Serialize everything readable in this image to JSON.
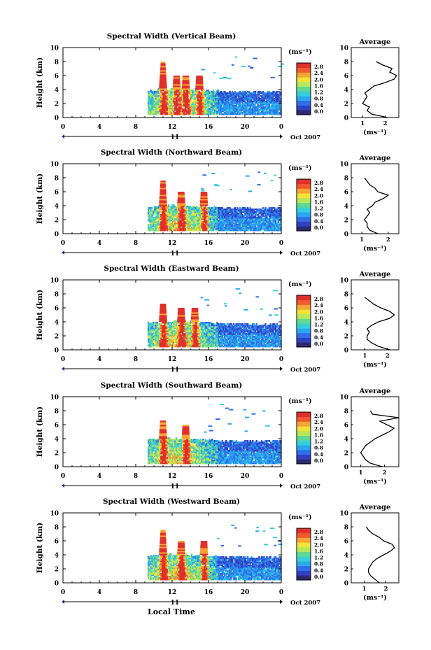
{
  "figure": {
    "time_axis_label": "Local Time",
    "average_title": "Average",
    "average_xlabel": "(ms⁻¹)",
    "ylabel": "Height (km)",
    "colorbar_unit": "(ms⁻¹)",
    "date_label": "Oct 2007",
    "day_label": "11"
  },
  "colorbar": {
    "tick_labels": [
      "0.0",
      "0.4",
      "0.8",
      "1.2",
      "1.6",
      "2.0",
      "2.4",
      "2.8"
    ],
    "colors": [
      "#2a2a6e",
      "#3040c0",
      "#2f6fe8",
      "#2aa7f0",
      "#38d0d8",
      "#5fd890",
      "#b4e85a",
      "#f2e23a",
      "#f5a634",
      "#ef5a2e",
      "#e0302a"
    ]
  },
  "chart_data": [
    {
      "type": "heatmap",
      "title": "Spectral Width (Vertical Beam)",
      "xlabel": "",
      "ylabel": "Height (km)",
      "xlim": [
        0,
        24
      ],
      "ylim": [
        0,
        10
      ],
      "xticks": [
        "0",
        "4",
        "8",
        "12",
        "16",
        "20",
        "0"
      ],
      "yticks": [
        "0",
        "2",
        "4",
        "6",
        "8",
        "10"
      ],
      "colorbar": {
        "label": "(ms⁻¹)",
        "range": [
          0,
          2.8
        ]
      },
      "average_profile": {
        "xlim": [
          0.5,
          2.6
        ],
        "xticks": [
          "1",
          "2"
        ],
        "ylim": [
          0,
          10
        ],
        "height_km": [
          0,
          0.5,
          1,
          1.5,
          2,
          2.5,
          3,
          3.5,
          4,
          4.5,
          5,
          5.5,
          6,
          6.5,
          7,
          7.5,
          8,
          8.5,
          9,
          10
        ],
        "width": [
          2.1,
          1.4,
          1.2,
          1.3,
          1.0,
          1.1,
          1.2,
          1.1,
          1.3,
          1.5,
          2.0,
          2.4,
          2.5,
          2.2,
          2.3,
          1.9,
          1.6,
          null,
          null,
          null
        ]
      },
      "features": {
        "data_start_hour": 9.3,
        "convective_hours": [
          11,
          12.5,
          13.5,
          15
        ],
        "high_width_peak_km": 8
      }
    },
    {
      "type": "heatmap",
      "title": "Spectral Width (Northward Beam)",
      "xlabel": "",
      "ylabel": "Height (km)",
      "xlim": [
        0,
        24
      ],
      "ylim": [
        0,
        10
      ],
      "xticks": [
        "0",
        "4",
        "8",
        "12",
        "16",
        "20",
        "0"
      ],
      "yticks": [
        "0",
        "2",
        "4",
        "6",
        "8",
        "10"
      ],
      "colorbar": {
        "label": "(ms⁻¹)",
        "range": [
          0,
          2.8
        ]
      },
      "average_profile": {
        "xlim": [
          0.6,
          2.4
        ],
        "xticks": [
          "1",
          "2"
        ],
        "ylim": [
          0,
          10
        ],
        "height_km": [
          0,
          0.5,
          1,
          1.5,
          2,
          2.5,
          3,
          3.5,
          4,
          4.5,
          5,
          5.5,
          6,
          6.5,
          7,
          7.5,
          8,
          8.5,
          9,
          10
        ],
        "width": [
          1.6,
          1.3,
          1.2,
          1.2,
          1.1,
          1.2,
          1.3,
          1.2,
          1.4,
          1.5,
          1.8,
          2.0,
          1.6,
          1.5,
          1.3,
          1.2,
          1.1,
          null,
          null,
          null
        ]
      },
      "features": {
        "data_start_hour": 9.3,
        "convective_hours": [
          11,
          13,
          15.5
        ],
        "high_width_peak_km": 7.5
      }
    },
    {
      "type": "heatmap",
      "title": "Spectral Width (Eastward Beam)",
      "xlabel": "",
      "ylabel": "Height (km)",
      "xlim": [
        0,
        24
      ],
      "ylim": [
        0,
        10
      ],
      "xticks": [
        "0",
        "4",
        "8",
        "12",
        "16",
        "20",
        "0"
      ],
      "yticks": [
        "0",
        "2",
        "4",
        "6",
        "8",
        "10"
      ],
      "colorbar": {
        "label": "(ms⁻¹)",
        "range": [
          0,
          2.8
        ]
      },
      "average_profile": {
        "xlim": [
          0.4,
          2.5
        ],
        "xticks": [
          "1",
          "2"
        ],
        "ylim": [
          0,
          10
        ],
        "height_km": [
          0,
          0.5,
          1,
          1.5,
          2,
          2.5,
          3,
          3.5,
          4,
          4.5,
          5,
          5.5,
          6,
          6.5,
          7,
          7.5,
          8,
          8.5,
          9,
          10
        ],
        "width": [
          2.1,
          1.6,
          1.3,
          1.1,
          1.1,
          1.2,
          1.1,
          1.3,
          1.6,
          2.1,
          2.3,
          2.1,
          1.7,
          1.4,
          1.2,
          1.0,
          null,
          null,
          null,
          null
        ]
      },
      "features": {
        "data_start_hour": 9.3,
        "convective_hours": [
          11,
          13,
          14.5
        ],
        "high_width_peak_km": 6.5
      }
    },
    {
      "type": "heatmap",
      "title": "Spectral Width (Southward Beam)",
      "xlabel": "",
      "ylabel": "Height (km)",
      "xlim": [
        0,
        24
      ],
      "ylim": [
        0,
        10
      ],
      "xticks": [
        "0",
        "4",
        "8",
        "12",
        "16",
        "20",
        "0"
      ],
      "yticks": [
        "0",
        "2",
        "4",
        "6",
        "8",
        "10"
      ],
      "colorbar": {
        "label": "(ms⁻¹)",
        "range": [
          0,
          2.8
        ]
      },
      "average_profile": {
        "xlim": [
          0.6,
          2.6
        ],
        "xticks": [
          "1",
          "2"
        ],
        "ylim": [
          0,
          10
        ],
        "height_km": [
          0,
          0.5,
          1,
          1.5,
          2,
          2.5,
          3,
          3.5,
          4,
          4.5,
          5,
          5.5,
          6,
          6.5,
          7,
          7.5,
          8,
          8.5,
          9,
          10
        ],
        "width": [
          1.9,
          1.4,
          1.2,
          1.1,
          1.0,
          1.1,
          1.2,
          1.4,
          1.6,
          1.9,
          2.2,
          2.4,
          2.1,
          1.8,
          2.6,
          1.5,
          1.4,
          null,
          null,
          null
        ]
      },
      "features": {
        "data_start_hour": 9.3,
        "convective_hours": [
          11,
          13.5
        ],
        "high_width_peak_km": 6.5
      }
    },
    {
      "type": "heatmap",
      "title": "Spectral Width (Westward Beam)",
      "xlabel": "Local Time",
      "ylabel": "Height (km)",
      "xlim": [
        0,
        24
      ],
      "ylim": [
        0,
        10
      ],
      "xticks": [
        "0",
        "4",
        "8",
        "12",
        "16",
        "20",
        "0"
      ],
      "yticks": [
        "0",
        "2",
        "4",
        "6",
        "8",
        "10"
      ],
      "colorbar": {
        "label": "(ms⁻¹)",
        "range": [
          0,
          2.8
        ]
      },
      "average_profile": {
        "xlim": [
          0.4,
          2.6
        ],
        "xticks": [
          "1",
          "2"
        ],
        "ylim": [
          0,
          10
        ],
        "height_km": [
          0,
          0.5,
          1,
          1.5,
          2,
          2.5,
          3,
          3.5,
          4,
          4.5,
          5,
          5.5,
          6,
          6.5,
          7,
          7.5,
          8,
          8.5,
          9,
          10
        ],
        "width": [
          1.7,
          1.5,
          1.3,
          1.2,
          1.2,
          1.3,
          1.4,
          1.6,
          1.9,
          2.2,
          2.4,
          2.3,
          1.9,
          1.7,
          1.4,
          1.2,
          1.1,
          null,
          null,
          null
        ]
      },
      "features": {
        "data_start_hour": 9.3,
        "convective_hours": [
          11,
          13,
          15.5
        ],
        "high_width_peak_km": 7.5
      }
    }
  ]
}
